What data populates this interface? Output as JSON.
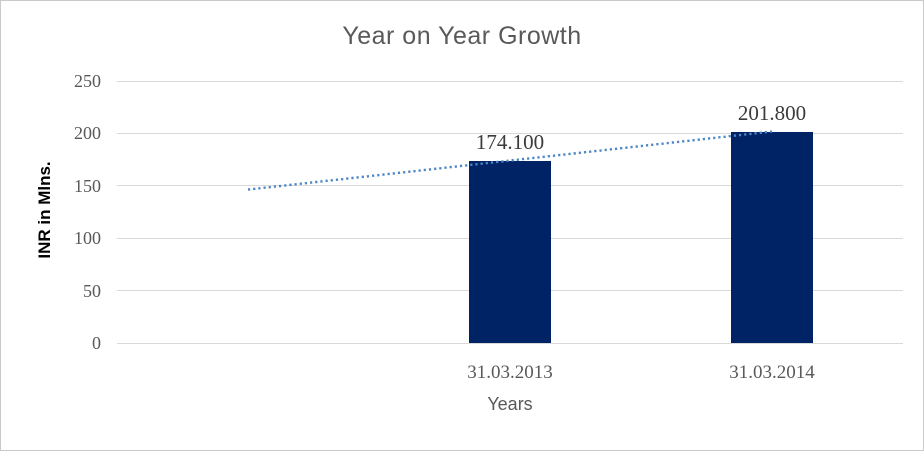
{
  "chart_data": {
    "type": "bar",
    "title": "Year on Year Growth",
    "ylabel": "INR in Mlns.",
    "xlabel": "Years",
    "categories": [
      "",
      "31.03.2013",
      "31.03.2014"
    ],
    "values": [
      null,
      174.1,
      201.8
    ],
    "bar_labels": [
      null,
      "174.100",
      "201.800"
    ],
    "ylim": [
      0,
      250
    ],
    "yticks": [
      0,
      50,
      100,
      150,
      200,
      250
    ],
    "grid": true,
    "legend": "none",
    "trendline": {
      "type": "linear",
      "style": "dotted",
      "start": {
        "category_index": 0,
        "value": 146.4
      },
      "end": {
        "category_index": 2,
        "value": 201.8
      }
    },
    "colors": {
      "bar": "#002366",
      "trendline": "#4a86c8",
      "gridline": "#d9d9d9",
      "title_text": "#595959",
      "axis_text": "#595959",
      "data_label_text": "#3b3b3b",
      "axis_title_text": "#000000",
      "border": "#c9c9c9",
      "background": "#ffffff"
    }
  }
}
